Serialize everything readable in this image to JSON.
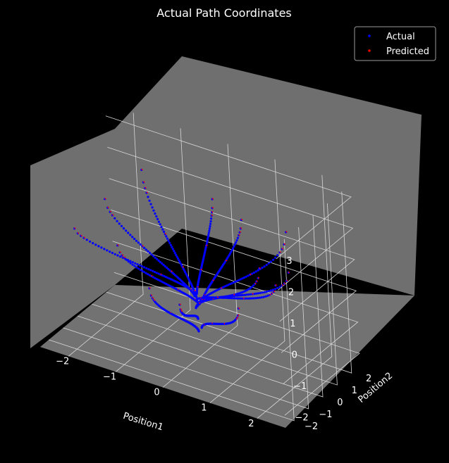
{
  "chart_data": {
    "type": "scatter",
    "projection": "3d",
    "title": "Actual Path Coordinates",
    "xlabel": "Position1",
    "ylabel": "Position2",
    "zlabel": "",
    "xlim": [
      -2.6,
      2.6
    ],
    "ylim": [
      -2.6,
      2.6
    ],
    "zlim": [
      -2.4,
      3.4
    ],
    "xticks": [
      "−2",
      "−1",
      "0",
      "1",
      "2"
    ],
    "yticks": [
      "−2",
      "−1",
      "0",
      "1",
      "2"
    ],
    "zticks": [
      "−2",
      "−1",
      "0",
      "1",
      "2",
      "3"
    ],
    "grid": true,
    "background": "#000000",
    "pane_color": "#6f6f6f",
    "legend_position": "top-right",
    "series": [
      {
        "name": "Actual",
        "color": "#0000ff"
      },
      {
        "name": "Predicted",
        "color": "#ff0000"
      }
    ],
    "paths": [
      {
        "start": [
          -2.45,
          -0.35,
          0.6
        ],
        "end": [
          -0.15,
          0.1,
          -0.4
        ]
      },
      {
        "start": [
          -2.05,
          0.55,
          1.4
        ],
        "end": [
          -0.05,
          0.0,
          -0.5
        ]
      },
      {
        "start": [
          -1.55,
          1.55,
          2.2
        ],
        "end": [
          0.0,
          0.0,
          -0.6
        ]
      },
      {
        "start": [
          -1.25,
          -1.25,
          1.0
        ],
        "end": [
          0.05,
          -0.05,
          -0.7
        ]
      },
      {
        "start": [
          -0.3,
          2.3,
          1.6
        ],
        "end": [
          0.0,
          0.0,
          -0.4
        ]
      },
      {
        "start": [
          0.4,
          2.0,
          1.4
        ],
        "end": [
          0.1,
          0.05,
          -0.6
        ]
      },
      {
        "start": [
          1.9,
          0.3,
          2.4
        ],
        "end": [
          0.0,
          0.0,
          -0.8
        ]
      },
      {
        "start": [
          2.2,
          -0.6,
          1.6
        ],
        "end": [
          0.05,
          0.0,
          -0.7
        ]
      },
      {
        "start": [
          1.8,
          -1.3,
          1.8
        ],
        "end": [
          -0.05,
          0.05,
          -0.9
        ]
      },
      {
        "start": [
          2.0,
          -0.9,
          1.2
        ],
        "end": [
          0.0,
          -0.05,
          -0.6
        ]
      },
      {
        "start": [
          0.3,
          -2.1,
          0.2
        ],
        "end": [
          0.0,
          0.0,
          -1.2
        ]
      },
      {
        "start": [
          -0.4,
          -1.9,
          0.3
        ],
        "end": [
          0.0,
          0.0,
          -1.6
        ]
      },
      {
        "start": [
          1.5,
          -1.9,
          0.6
        ],
        "end": [
          0.1,
          -0.1,
          -1.4
        ]
      }
    ]
  }
}
